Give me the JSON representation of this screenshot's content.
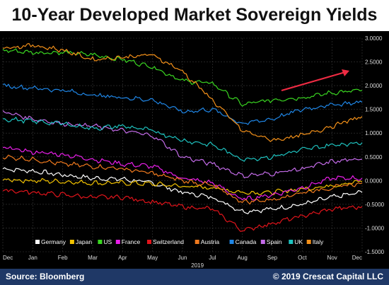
{
  "header": {
    "title": "10-Year Developed Market Sovereign Yields"
  },
  "footer": {
    "source": "Source: Bloomberg",
    "copyright": "© 2019 Crescat Capital LLC"
  },
  "chart_data": {
    "type": "line",
    "title": "10-Year Developed Market Sovereign Yields",
    "xlabel": "2019",
    "ylabel": "",
    "months": [
      "Dec",
      "Jan",
      "Feb",
      "Mar",
      "Apr",
      "May",
      "Jun",
      "Jul",
      "Aug",
      "Sep",
      "Oct",
      "Nov",
      "Dec"
    ],
    "yticks": [
      "3.0000",
      "2.5000",
      "2.0000",
      "1.5000",
      "1.0000",
      "0.5000",
      "0.0000",
      "-0.5000",
      "-1.0000",
      "-1.5000"
    ],
    "ylim": [
      -1.5,
      3.0
    ],
    "grid": true,
    "legend_position": "bottom",
    "annotation": "red arrow pointing up-right, late 2019",
    "x": [
      "Dec",
      "Jan",
      "Feb",
      "Mar",
      "Apr",
      "May",
      "Jun",
      "Jul",
      "Aug",
      "Sep",
      "Oct",
      "Nov",
      "Dec"
    ],
    "series": [
      {
        "name": "Germany",
        "color": "#ffffff",
        "values": [
          0.25,
          0.2,
          0.12,
          0.05,
          0.03,
          -0.05,
          -0.25,
          -0.35,
          -0.65,
          -0.6,
          -0.5,
          -0.35,
          -0.25
        ]
      },
      {
        "name": "Japan",
        "color": "#f2c200",
        "values": [
          0.02,
          0.0,
          -0.02,
          -0.05,
          -0.05,
          -0.07,
          -0.12,
          -0.15,
          -0.25,
          -0.25,
          -0.18,
          -0.1,
          -0.02
        ]
      },
      {
        "name": "US",
        "color": "#3ad621",
        "values": [
          2.75,
          2.7,
          2.7,
          2.65,
          2.55,
          2.4,
          2.1,
          2.05,
          1.6,
          1.7,
          1.75,
          1.85,
          1.9
        ]
      },
      {
        "name": "France",
        "color": "#e81ee8",
        "values": [
          0.7,
          0.6,
          0.55,
          0.45,
          0.35,
          0.3,
          0.05,
          -0.05,
          -0.4,
          -0.3,
          -0.15,
          0.05,
          0.05
        ]
      },
      {
        "name": "Switzerland",
        "color": "#e0141b",
        "values": [
          -0.2,
          -0.25,
          -0.3,
          -0.35,
          -0.35,
          -0.45,
          -0.55,
          -0.6,
          -1.05,
          -0.9,
          -0.75,
          -0.6,
          -0.55
        ]
      },
      {
        "name": "Austria",
        "color": "#f07a1e",
        "values": [
          0.5,
          0.45,
          0.35,
          0.3,
          0.25,
          0.15,
          0.0,
          -0.1,
          -0.45,
          -0.4,
          -0.25,
          -0.15,
          -0.05
        ]
      },
      {
        "name": "Canada",
        "color": "#1f86e6",
        "values": [
          2.0,
          1.95,
          1.9,
          1.8,
          1.75,
          1.7,
          1.45,
          1.5,
          1.2,
          1.3,
          1.5,
          1.6,
          1.65
        ]
      },
      {
        "name": "Spain",
        "color": "#c36be8",
        "values": [
          1.45,
          1.3,
          1.2,
          1.15,
          1.05,
          0.95,
          0.5,
          0.35,
          0.1,
          0.15,
          0.25,
          0.4,
          0.45
        ]
      },
      {
        "name": "UK",
        "color": "#1ec2bf",
        "values": [
          1.3,
          1.25,
          1.2,
          1.1,
          1.15,
          1.05,
          0.85,
          0.75,
          0.45,
          0.5,
          0.65,
          0.75,
          0.8
        ]
      },
      {
        "name": "Italy",
        "color": "#f39019",
        "values": [
          2.8,
          2.85,
          2.75,
          2.55,
          2.6,
          2.65,
          2.3,
          1.7,
          1.05,
          0.85,
          0.95,
          1.15,
          1.35
        ]
      }
    ]
  }
}
